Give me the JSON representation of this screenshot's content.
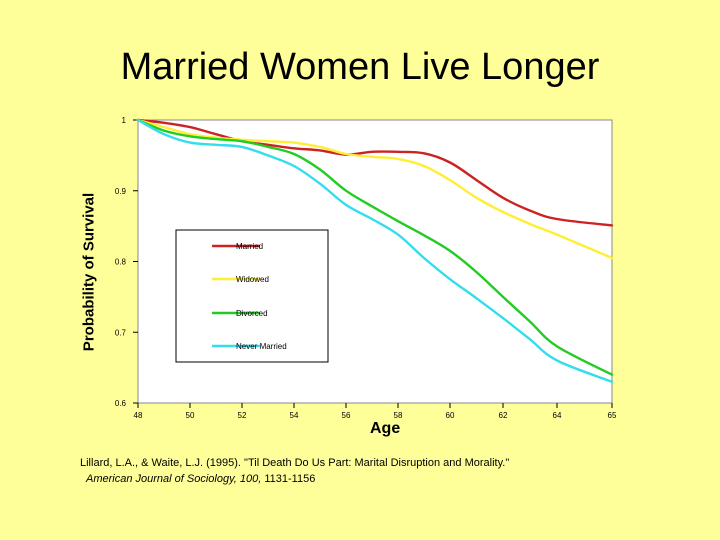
{
  "slide": {
    "title": "Married Women Live Longer",
    "citation_line1": "Lillard, L.A., & Waite, L.J. (1995). \"Til Death Do Us Part: Marital Disruption and Morality.\"",
    "citation_journal": "American Journal of Sociology, 100,",
    "citation_pages": " 1131-1156"
  },
  "chart_data": {
    "type": "line",
    "xlabel": "Age",
    "ylabel": "Probability of Survival",
    "xlim": [
      48,
      65
    ],
    "ylim": [
      0.6,
      1.0
    ],
    "x_ticks": [
      "48",
      "50",
      "52",
      "54",
      "56",
      "58",
      "60",
      "62",
      "64",
      "65"
    ],
    "y_ticks": [
      "1",
      "0.9",
      "0.8",
      "0.7",
      "0.6"
    ],
    "legend_position": "inside-left",
    "grid": false,
    "series": [
      {
        "name": "Married",
        "color": "#CC2222",
        "points": [
          [
            48,
            1.0
          ],
          [
            49,
            0.996
          ],
          [
            50,
            0.99
          ],
          [
            51,
            0.98
          ],
          [
            52,
            0.97
          ],
          [
            53,
            0.965
          ],
          [
            54,
            0.96
          ],
          [
            55,
            0.957
          ],
          [
            56,
            0.951
          ],
          [
            57,
            0.955
          ],
          [
            58,
            0.955
          ],
          [
            59,
            0.953
          ],
          [
            60,
            0.94
          ],
          [
            61,
            0.915
          ],
          [
            62,
            0.89
          ],
          [
            63,
            0.872
          ],
          [
            64,
            0.86
          ],
          [
            65,
            0.851
          ]
        ]
      },
      {
        "name": "Widowed",
        "color": "#FFEE33",
        "points": [
          [
            48,
            1.0
          ],
          [
            49,
            0.99
          ],
          [
            50,
            0.98
          ],
          [
            51,
            0.975
          ],
          [
            52,
            0.972
          ],
          [
            53,
            0.97
          ],
          [
            54,
            0.968
          ],
          [
            55,
            0.962
          ],
          [
            56,
            0.952
          ],
          [
            57,
            0.948
          ],
          [
            58,
            0.945
          ],
          [
            59,
            0.935
          ],
          [
            60,
            0.915
          ],
          [
            61,
            0.89
          ],
          [
            62,
            0.87
          ],
          [
            63,
            0.853
          ],
          [
            64,
            0.838
          ],
          [
            65,
            0.805
          ]
        ]
      },
      {
        "name": "Divorced",
        "color": "#22CC22",
        "points": [
          [
            48,
            1.0
          ],
          [
            49,
            0.985
          ],
          [
            50,
            0.977
          ],
          [
            51,
            0.973
          ],
          [
            52,
            0.97
          ],
          [
            53,
            0.962
          ],
          [
            54,
            0.952
          ],
          [
            55,
            0.93
          ],
          [
            56,
            0.9
          ],
          [
            57,
            0.878
          ],
          [
            58,
            0.857
          ],
          [
            59,
            0.837
          ],
          [
            60,
            0.815
          ],
          [
            61,
            0.785
          ],
          [
            62,
            0.75
          ],
          [
            63,
            0.715
          ],
          [
            64,
            0.68
          ],
          [
            65,
            0.64
          ]
        ]
      },
      {
        "name": "Never Married",
        "color": "#33DDEE",
        "points": [
          [
            48,
            1.0
          ],
          [
            49,
            0.98
          ],
          [
            50,
            0.968
          ],
          [
            51,
            0.965
          ],
          [
            52,
            0.962
          ],
          [
            53,
            0.95
          ],
          [
            54,
            0.935
          ],
          [
            55,
            0.91
          ],
          [
            56,
            0.88
          ],
          [
            57,
            0.86
          ],
          [
            58,
            0.838
          ],
          [
            59,
            0.805
          ],
          [
            60,
            0.775
          ],
          [
            61,
            0.748
          ],
          [
            62,
            0.72
          ],
          [
            63,
            0.69
          ],
          [
            64,
            0.66
          ],
          [
            65,
            0.63
          ]
        ]
      }
    ]
  }
}
